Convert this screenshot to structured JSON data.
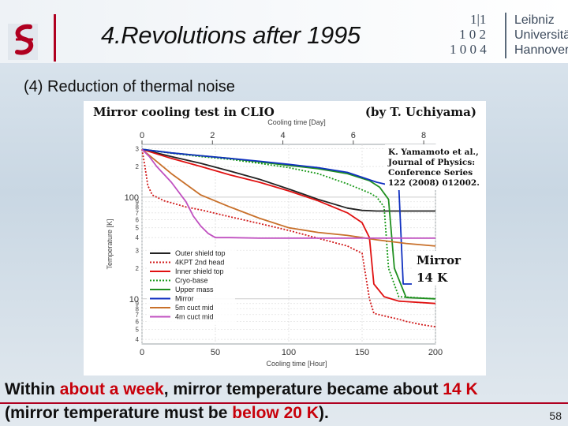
{
  "slide": {
    "title": "4.Revolutions after 1995",
    "subtitle": "(4) Reduction of thermal noise",
    "page_number": "58",
    "accent_color": "#b00020",
    "highlight_color": "#c8000a"
  },
  "logo_left": {
    "icon": "gravitational-wave-logo-icon"
  },
  "logo_right": {
    "glyphs": [
      "1|1",
      "1 0 2",
      "1 0 0 4"
    ],
    "lines": [
      "Leibniz",
      "Universität",
      "Hannover"
    ]
  },
  "figure": {
    "heading": "Mirror cooling test in CLIO",
    "credit": "(by T. Uchiyama)",
    "reference": [
      "K. Yamamoto et al.,",
      "Journal of Physics:",
      "Conference Series",
      "122 (2008) 012002."
    ],
    "annotation": [
      "Mirror",
      "14 K"
    ]
  },
  "chart_data": {
    "type": "line",
    "xlabel": "Cooling time [Hour]",
    "x2label": "Cooling time [Day]",
    "ylabel": "Temperature [K]",
    "xlim": [
      0,
      200
    ],
    "x_ticks": [
      0,
      50,
      100,
      150,
      200
    ],
    "x2_ticks": [
      0,
      2,
      4,
      6,
      8
    ],
    "y_scale": "log",
    "ylim": [
      3.6,
      330
    ],
    "y_major_ticks": [
      {
        "v": 10,
        "label": "10"
      },
      {
        "v": 100,
        "label": "100"
      }
    ],
    "y_minor_ticks": [
      {
        "v": 4,
        "label": "4"
      },
      {
        "v": 5,
        "label": "5"
      },
      {
        "v": 6,
        "label": "6"
      },
      {
        "v": 7,
        "label": "7"
      },
      {
        "v": 8,
        "label": "8"
      },
      {
        "v": 9,
        "label": "9"
      },
      {
        "v": 20,
        "label": "2"
      },
      {
        "v": 30,
        "label": "3"
      },
      {
        "v": 40,
        "label": "4"
      },
      {
        "v": 50,
        "label": "5"
      },
      {
        "v": 60,
        "label": "6"
      },
      {
        "v": 70,
        "label": "7"
      },
      {
        "v": 80,
        "label": "8"
      },
      {
        "v": 90,
        "label": "9"
      },
      {
        "v": 200,
        "label": "2"
      },
      {
        "v": 300,
        "label": "3"
      }
    ],
    "grid": true,
    "legend_position": "bottom-left",
    "series": [
      {
        "name": "Outer shield top",
        "color": "#222222",
        "dash": "",
        "x": [
          0,
          20,
          40,
          60,
          80,
          100,
          120,
          140,
          150,
          160,
          180,
          200
        ],
        "y": [
          295,
          250,
          215,
          180,
          150,
          120,
          95,
          78,
          74,
          73,
          73,
          73
        ]
      },
      {
        "name": "4KPT 2nd head",
        "color": "#d11a1a",
        "dash": "2,2",
        "x": [
          0,
          2,
          4,
          7,
          10,
          15,
          20,
          30,
          40,
          60,
          80,
          100,
          140,
          150,
          155,
          158,
          165,
          175,
          180,
          190,
          200
        ],
        "y": [
          295,
          200,
          130,
          105,
          100,
          92,
          88,
          80,
          75,
          64,
          55,
          47,
          33,
          28,
          10,
          7.2,
          6.8,
          6.3,
          6.0,
          5.6,
          5.3
        ]
      },
      {
        "name": "Inner shield top",
        "color": "#e01010",
        "dash": "",
        "x": [
          0,
          20,
          40,
          60,
          80,
          100,
          120,
          140,
          150,
          155,
          158,
          165,
          175,
          200
        ],
        "y": [
          295,
          240,
          200,
          165,
          140,
          115,
          92,
          70,
          56,
          40,
          14,
          10.5,
          9.5,
          9.0
        ]
      },
      {
        "name": "Cryo-base",
        "color": "#1a9a1a",
        "dash": "2,2",
        "x": [
          0,
          20,
          40,
          60,
          80,
          100,
          120,
          140,
          155,
          160,
          165,
          168,
          175,
          200
        ],
        "y": [
          295,
          270,
          250,
          235,
          215,
          195,
          170,
          135,
          110,
          100,
          80,
          20,
          10.5,
          10.0
        ]
      },
      {
        "name": "Upper mass",
        "color": "#1f8f1f",
        "dash": "",
        "x": [
          0,
          20,
          40,
          60,
          80,
          100,
          120,
          140,
          155,
          162,
          168,
          172,
          180,
          200
        ],
        "y": [
          295,
          272,
          255,
          240,
          222,
          205,
          190,
          170,
          145,
          125,
          95,
          20,
          10.3,
          10.0
        ]
      },
      {
        "name": "Mirror",
        "color": "#1030c0",
        "dash": "",
        "x": [
          0,
          20,
          40,
          60,
          80,
          100,
          120,
          140,
          160,
          170,
          175,
          178,
          185,
          200
        ],
        "y": [
          295,
          272,
          255,
          240,
          225,
          210,
          195,
          175,
          140,
          130,
          128,
          14,
          14,
          14
        ]
      },
      {
        "name": "5m cuct mid",
        "color": "#c8702a",
        "dash": "",
        "x": [
          0,
          20,
          40,
          60,
          80,
          100,
          120,
          140,
          150,
          160,
          180,
          200
        ],
        "y": [
          295,
          170,
          105,
          80,
          62,
          50,
          45,
          42,
          40,
          38,
          35,
          33
        ]
      },
      {
        "name": "4m cuct mid",
        "color": "#c050c0",
        "dash": "",
        "x": [
          0,
          5,
          10,
          20,
          30,
          35,
          40,
          45,
          50,
          60,
          80,
          100,
          120,
          140,
          160,
          180,
          200
        ],
        "y": [
          295,
          250,
          200,
          140,
          90,
          65,
          52,
          44,
          40,
          40,
          39.5,
          39.5,
          39.5,
          39.5,
          39.5,
          39.5,
          39.5
        ]
      }
    ]
  },
  "body": {
    "line1": [
      {
        "text": "Within ",
        "hl": false
      },
      {
        "text": "about a week",
        "hl": true
      },
      {
        "text": ", mirror temperature became about ",
        "hl": false
      },
      {
        "text": "14 K",
        "hl": true
      }
    ],
    "line2": [
      {
        "text": "(mirror temperature must be ",
        "hl": false
      },
      {
        "text": "below 20 K",
        "hl": true
      },
      {
        "text": ").",
        "hl": false
      }
    ]
  }
}
